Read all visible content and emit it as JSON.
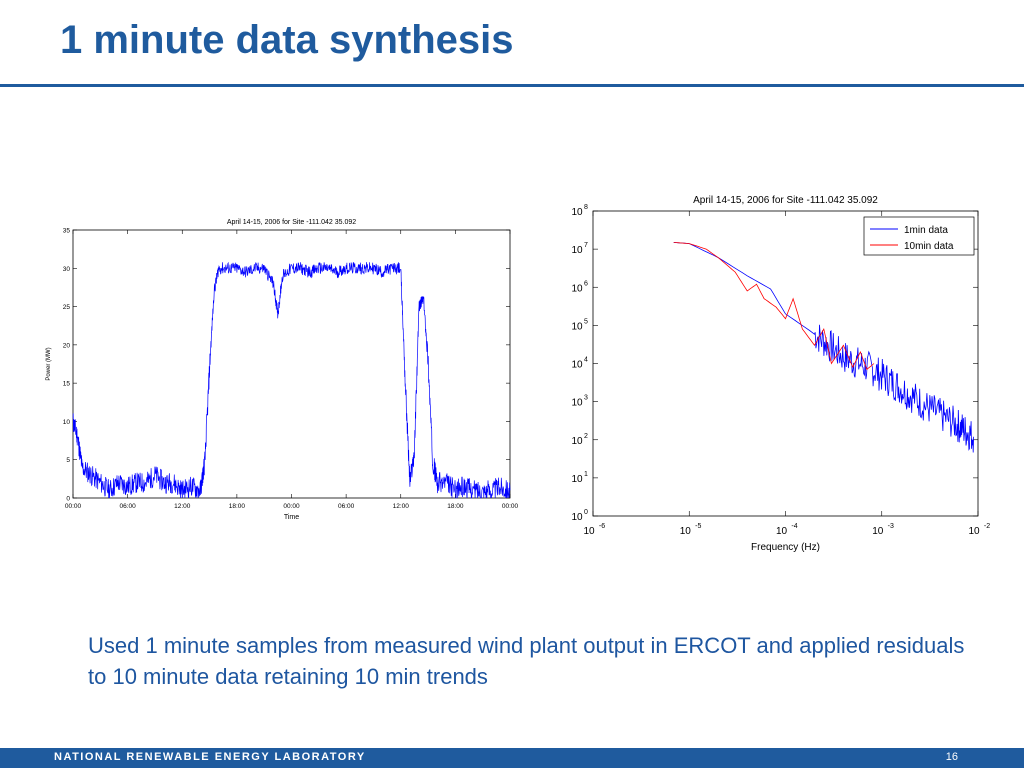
{
  "slide": {
    "title": "1 minute data synthesis",
    "caption": "Used 1 minute samples from measured wind plant output in ERCOT and applied residuals to 10 minute data retaining 10 min trends",
    "footer_org": "NATIONAL RENEWABLE ENERGY LABORATORY",
    "page_number": "16"
  },
  "colors": {
    "brand_blue": "#1f5b9e",
    "series_1min": "#0000ff",
    "series_10min": "#ff0000"
  },
  "chart_data": [
    {
      "type": "line",
      "title": "April 14-15, 2006 for Site -111.042 35.092",
      "xlabel": "Time",
      "ylabel": "Power (MW)",
      "xticks": [
        "00:00",
        "06:00",
        "12:00",
        "18:00",
        "00:00",
        "06:00",
        "12:00",
        "18:00",
        "00:00"
      ],
      "xlim_hours": [
        0,
        48
      ],
      "ylim": [
        0,
        35
      ],
      "yticks": [
        0,
        5,
        10,
        15,
        20,
        25,
        30,
        35
      ],
      "grid": false,
      "series": [
        {
          "x_hours": [
            0,
            0.5,
            1,
            2,
            3,
            4,
            5,
            6,
            7,
            8,
            9,
            10,
            11,
            12,
            13,
            14,
            14.5,
            15,
            15.5,
            16,
            17,
            18,
            19,
            20,
            21,
            22,
            22.5,
            23,
            24,
            25,
            26,
            27,
            28,
            29,
            30,
            31,
            32,
            33,
            34,
            35,
            36,
            36.5,
            37,
            37.5,
            38,
            38.5,
            39,
            39.5,
            40,
            41,
            42,
            43,
            44,
            45,
            46,
            47,
            48
          ],
          "y": [
            10,
            8,
            4,
            3,
            2,
            1,
            2,
            1.5,
            2,
            2,
            3,
            2,
            2,
            1,
            1.5,
            1,
            5,
            17,
            27,
            30,
            30,
            30,
            29.5,
            30,
            30,
            28,
            24,
            29,
            30,
            30,
            29.5,
            30,
            30,
            29.5,
            30,
            30,
            30,
            30,
            29.5,
            30,
            30,
            15,
            2,
            6,
            25,
            26,
            18,
            5,
            2,
            2,
            1,
            1.5,
            1,
            1,
            1,
            1.5,
            1
          ]
        }
      ]
    },
    {
      "type": "line",
      "scale": "log-log",
      "title": "April 14-15, 2006 for Site -111.042 35.092",
      "xlabel": "Frequency (Hz)",
      "ylabel": "",
      "xlim": [
        1e-06,
        0.01
      ],
      "ylim": [
        1,
        100000000
      ],
      "xtick_exponents": [
        -6,
        -5,
        -4,
        -3,
        -2
      ],
      "ytick_exponents": [
        0,
        1,
        2,
        3,
        4,
        5,
        6,
        7,
        8
      ],
      "legend_position": "top-right",
      "grid": false,
      "series": [
        {
          "name": "1min data",
          "x": [
            6.9e-06,
            1e-05,
            2e-05,
            4e-05,
            7e-05,
            0.0001,
            0.0002,
            0.0004,
            0.0008,
            0.0015,
            0.003,
            0.006,
            0.009
          ],
          "y": [
            15000000,
            14000000,
            6000000,
            2000000,
            900000,
            200000,
            60000,
            15000,
            7000,
            2500,
            700,
            250,
            120
          ]
        },
        {
          "name": "10min data",
          "x": [
            6.9e-06,
            1e-05,
            1.5e-05,
            2e-05,
            3e-05,
            4e-05,
            5e-05,
            6e-05,
            8e-05,
            0.0001,
            0.00012,
            0.00015,
            0.0002,
            0.00025,
            0.0003,
            0.0004,
            0.0005,
            0.0006,
            0.0007,
            0.00083
          ],
          "y": [
            15000000,
            14000000,
            10000000,
            6000000,
            2500000,
            800000,
            1200000,
            500000,
            300000,
            150000,
            500000,
            80000,
            30000,
            80000,
            10000,
            30000,
            8000,
            20000,
            7000,
            10000
          ]
        }
      ]
    }
  ]
}
